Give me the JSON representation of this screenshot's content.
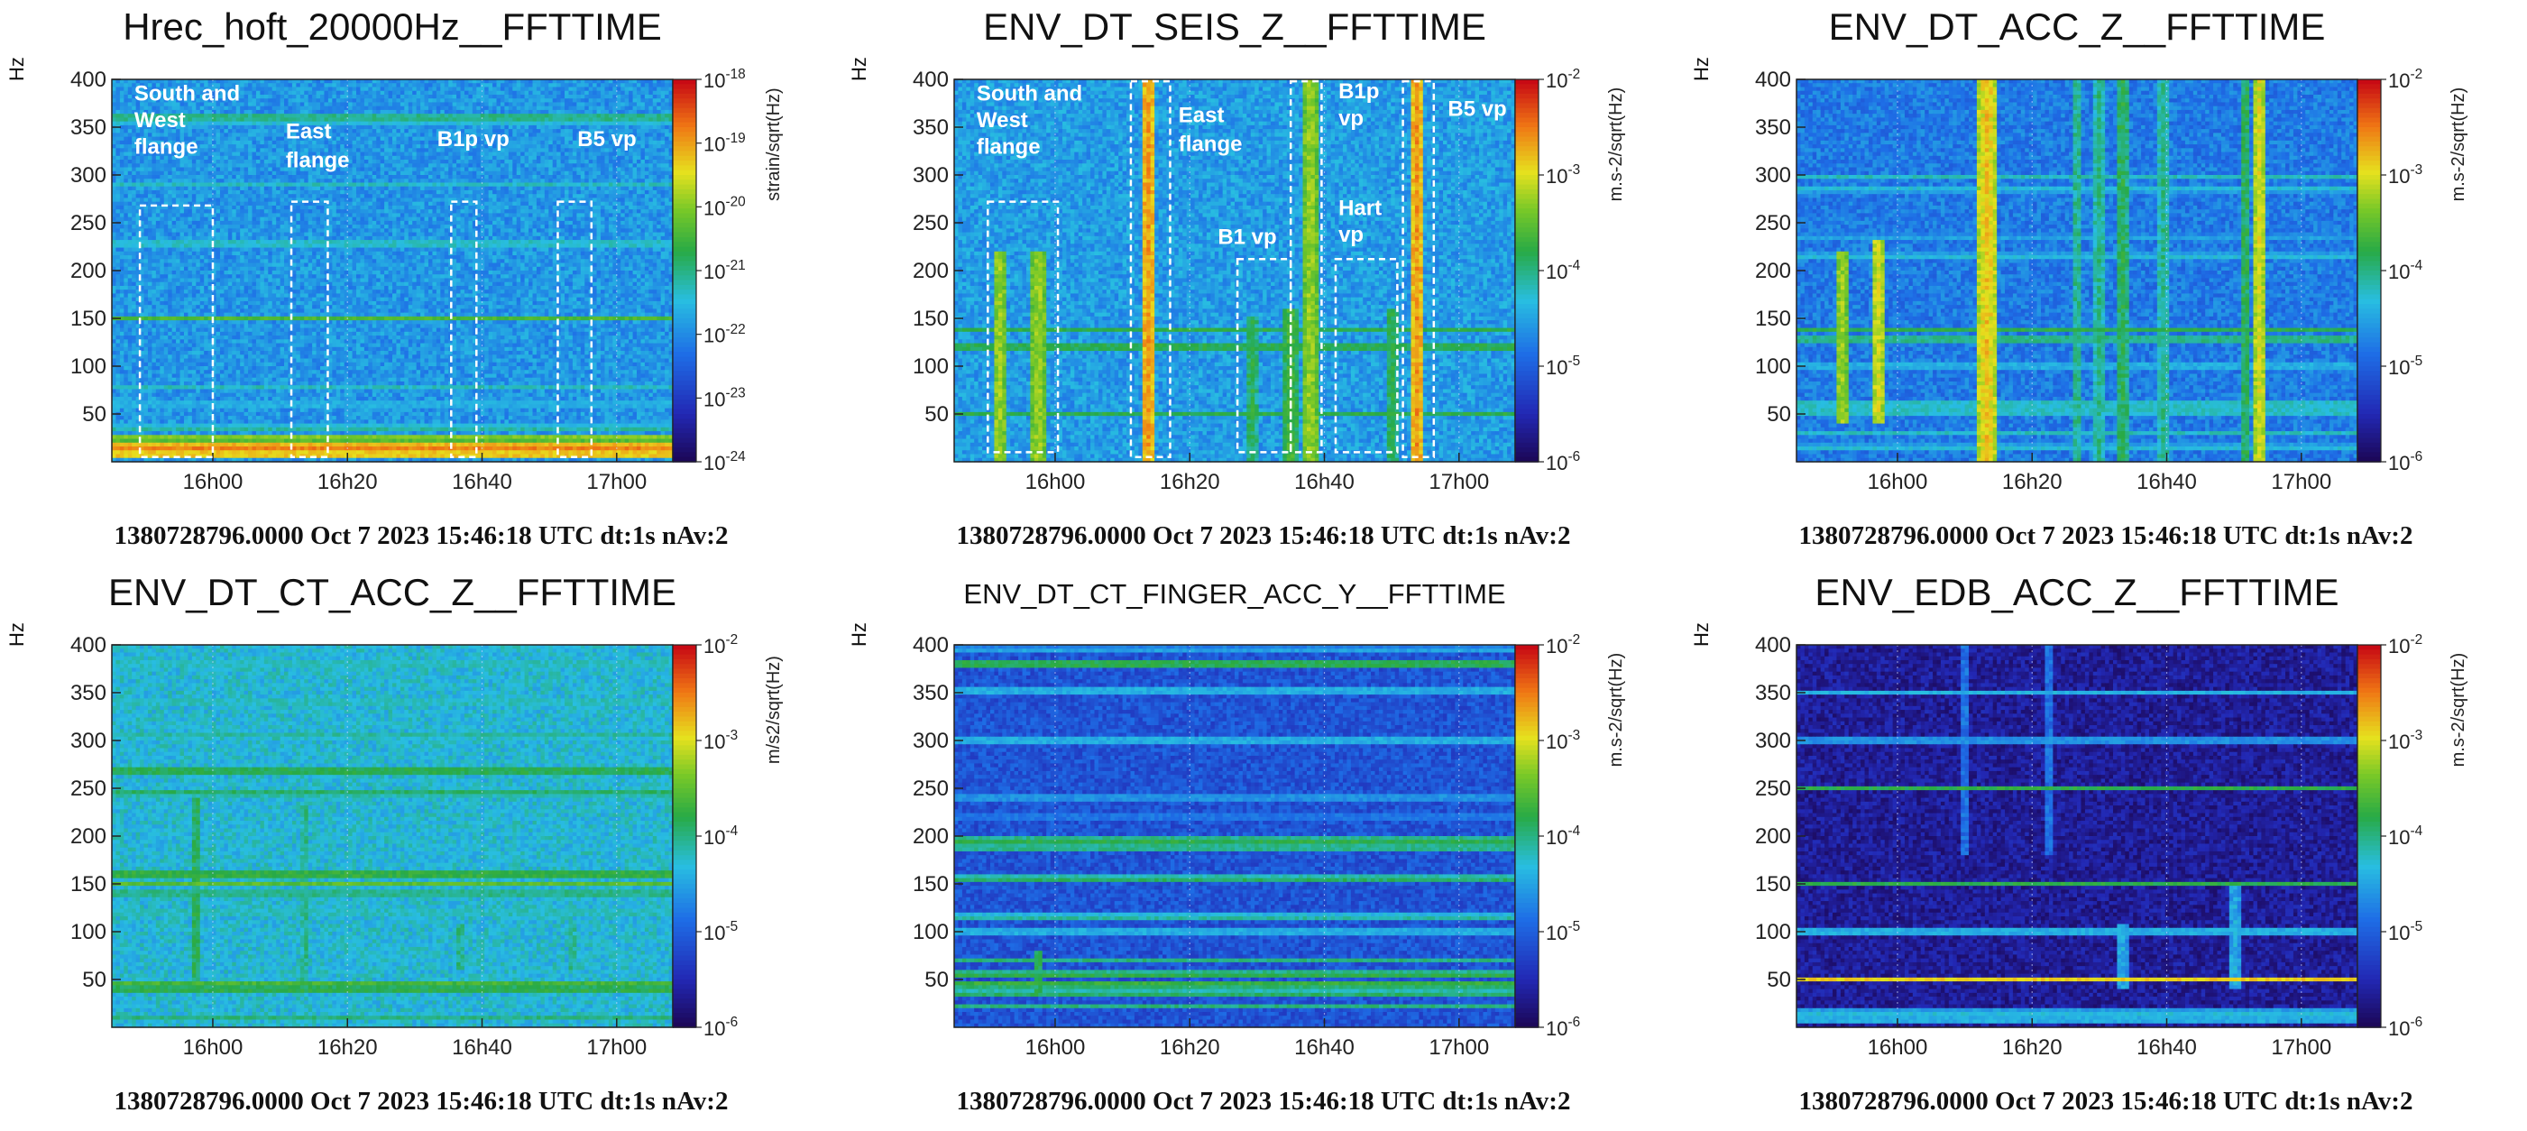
{
  "chart_data": [
    {
      "type": "heatmap",
      "title": "Hrec_hoft_20000Hz__FFTTIME",
      "ylabel": "Hz",
      "yticks": [
        "400",
        "350",
        "300",
        "250",
        "200",
        "150",
        "100",
        "50"
      ],
      "ylim": [
        0,
        400
      ],
      "xticks": [
        "16h00",
        "16h20",
        "16h40",
        "17h00"
      ],
      "colorbar_label": "strain/sqrt(Hz)",
      "colorbar_ticks": [
        "10-18",
        "10-19",
        "10-20",
        "10-21",
        "10-22",
        "10-23",
        "10-24"
      ],
      "colorbar_range_exp": [
        -24,
        -18
      ],
      "footer": "1380728796.0000 Oct 7 2023 15:46:18 UTC dt:1s nAv:2",
      "background_level": 0.35,
      "lines": [
        {
          "hz": 360,
          "v": 0.55
        },
        {
          "hz": 355,
          "v": 0.45
        },
        {
          "hz": 290,
          "v": 0.45
        },
        {
          "hz": 228,
          "v": 0.5
        },
        {
          "hz": 150,
          "v": 0.6
        },
        {
          "hz": 78,
          "v": 0.45
        },
        {
          "hz": 60,
          "v": 0.45
        },
        {
          "hz": 35,
          "v": 0.5
        },
        {
          "hz": 25,
          "v": 0.7
        },
        {
          "hz": 15,
          "v": 0.9
        },
        {
          "hz": 8,
          "v": 0.85
        }
      ],
      "bursts": [],
      "annotations": [
        {
          "text": "South and",
          "hz": 378,
          "t": 0.04
        },
        {
          "text": "West",
          "hz": 350,
          "t": 0.04
        },
        {
          "text": "flange",
          "hz": 322,
          "t": 0.04
        },
        {
          "text": "East",
          "hz": 338,
          "t": 0.31
        },
        {
          "text": "flange",
          "hz": 308,
          "t": 0.31
        },
        {
          "text": "B1p vp",
          "hz": 330,
          "t": 0.58
        },
        {
          "text": "B5 vp",
          "hz": 330,
          "t": 0.83
        }
      ],
      "boxes": [
        {
          "t0": 0.05,
          "t1": 0.18,
          "hz0": 5,
          "hz1": 268
        },
        {
          "t0": 0.32,
          "t1": 0.385,
          "hz0": 5,
          "hz1": 272
        },
        {
          "t0": 0.605,
          "t1": 0.65,
          "hz0": 5,
          "hz1": 272
        },
        {
          "t0": 0.795,
          "t1": 0.855,
          "hz0": 5,
          "hz1": 272
        }
      ]
    },
    {
      "type": "heatmap",
      "title": "ENV_DT_SEIS_Z__FFTTIME",
      "ylabel": "Hz",
      "yticks": [
        "400",
        "350",
        "300",
        "250",
        "200",
        "150",
        "100",
        "50"
      ],
      "ylim": [
        0,
        400
      ],
      "xticks": [
        "16h00",
        "16h20",
        "16h40",
        "17h00"
      ],
      "colorbar_label": "m.s-2/sqrt(Hz)",
      "colorbar_ticks": [
        "10-2",
        "10-3",
        "10-4",
        "10-5",
        "10-6"
      ],
      "colorbar_range_exp": [
        -6,
        -2
      ],
      "footer": "1380728796.0000 Oct 7 2023 15:46:18 UTC dt:1s nAv:2",
      "background_level": 0.36,
      "lines": [
        {
          "hz": 275,
          "v": 0.3
        },
        {
          "hz": 138,
          "v": 0.55
        },
        {
          "hz": 120,
          "v": 0.6
        },
        {
          "hz": 100,
          "v": 0.3
        },
        {
          "hz": 70,
          "v": 0.3
        },
        {
          "hz": 50,
          "v": 0.55
        },
        {
          "hz": 35,
          "v": 0.3
        },
        {
          "hz": 20,
          "v": 0.3
        }
      ],
      "bursts": [
        {
          "t": 0.08,
          "w": 0.012,
          "hz0": 0,
          "hz1": 220,
          "v": 0.7
        },
        {
          "t": 0.15,
          "w": 0.012,
          "hz0": 0,
          "hz1": 220,
          "v": 0.7
        },
        {
          "t": 0.345,
          "w": 0.012,
          "hz0": 0,
          "hz1": 400,
          "v": 0.85
        },
        {
          "t": 0.53,
          "w": 0.01,
          "hz0": 0,
          "hz1": 150,
          "v": 0.55
        },
        {
          "t": 0.6,
          "w": 0.012,
          "hz0": 0,
          "hz1": 160,
          "v": 0.6
        },
        {
          "t": 0.635,
          "w": 0.012,
          "hz0": 0,
          "hz1": 400,
          "v": 0.7
        },
        {
          "t": 0.78,
          "w": 0.01,
          "hz0": 0,
          "hz1": 160,
          "v": 0.55
        },
        {
          "t": 0.825,
          "w": 0.014,
          "hz0": 0,
          "hz1": 400,
          "v": 0.85
        }
      ],
      "annotations": [
        {
          "text": "South and",
          "hz": 378,
          "t": 0.04
        },
        {
          "text": "West",
          "hz": 350,
          "t": 0.04
        },
        {
          "text": "flange",
          "hz": 322,
          "t": 0.04
        },
        {
          "text": "East",
          "hz": 355,
          "t": 0.4
        },
        {
          "text": "flange",
          "hz": 325,
          "t": 0.4
        },
        {
          "text": "B1 vp",
          "hz": 228,
          "t": 0.47
        },
        {
          "text": "B1p",
          "hz": 380,
          "t": 0.685
        },
        {
          "text": "vp",
          "hz": 352,
          "t": 0.685
        },
        {
          "text": "Hart",
          "hz": 258,
          "t": 0.685
        },
        {
          "text": "vp",
          "hz": 230,
          "t": 0.685
        },
        {
          "text": "B5 vp",
          "hz": 362,
          "t": 0.88
        }
      ],
      "boxes": [
        {
          "t0": 0.06,
          "t1": 0.185,
          "hz0": 10,
          "hz1": 272
        },
        {
          "t0": 0.315,
          "t1": 0.385,
          "hz0": 5,
          "hz1": 398
        },
        {
          "t0": 0.505,
          "t1": 0.6,
          "hz0": 10,
          "hz1": 212
        },
        {
          "t0": 0.6,
          "t1": 0.655,
          "hz0": 10,
          "hz1": 398
        },
        {
          "t0": 0.68,
          "t1": 0.79,
          "hz0": 10,
          "hz1": 212
        },
        {
          "t0": 0.8,
          "t1": 0.855,
          "hz0": 5,
          "hz1": 398
        }
      ]
    },
    {
      "type": "heatmap",
      "title": "ENV_DT_ACC_Z__FFTTIME",
      "ylabel": "Hz",
      "yticks": [
        "400",
        "350",
        "300",
        "250",
        "200",
        "150",
        "100",
        "50"
      ],
      "ylim": [
        0,
        400
      ],
      "xticks": [
        "16h00",
        "16h20",
        "16h40",
        "17h00"
      ],
      "colorbar_label": "m.s-2/sqrt(Hz)",
      "colorbar_ticks": [
        "10-2",
        "10-3",
        "10-4",
        "10-5",
        "10-6"
      ],
      "colorbar_range_exp": [
        -6,
        -2
      ],
      "footer": "1380728796.0000 Oct 7 2023 15:46:18 UTC dt:1s nAv:2",
      "background_level": 0.3,
      "lines": [
        {
          "hz": 298,
          "v": 0.45
        },
        {
          "hz": 285,
          "v": 0.45
        },
        {
          "hz": 235,
          "v": 0.4
        },
        {
          "hz": 215,
          "v": 0.45
        },
        {
          "hz": 138,
          "v": 0.55
        },
        {
          "hz": 128,
          "v": 0.55
        },
        {
          "hz": 100,
          "v": 0.45
        },
        {
          "hz": 60,
          "v": 0.5
        },
        {
          "hz": 52,
          "v": 0.5
        },
        {
          "hz": 30,
          "v": 0.45
        },
        {
          "hz": 15,
          "v": 0.45
        }
      ],
      "bursts": [
        {
          "t": 0.08,
          "w": 0.01,
          "hz0": 40,
          "hz1": 220,
          "v": 0.7
        },
        {
          "t": 0.145,
          "w": 0.012,
          "hz0": 40,
          "hz1": 230,
          "v": 0.75
        },
        {
          "t": 0.34,
          "w": 0.016,
          "hz0": 0,
          "hz1": 400,
          "v": 0.8
        },
        {
          "t": 0.5,
          "w": 0.008,
          "hz0": 0,
          "hz1": 400,
          "v": 0.5
        },
        {
          "t": 0.54,
          "w": 0.008,
          "hz0": 0,
          "hz1": 400,
          "v": 0.5
        },
        {
          "t": 0.58,
          "w": 0.01,
          "hz0": 0,
          "hz1": 400,
          "v": 0.55
        },
        {
          "t": 0.655,
          "w": 0.01,
          "hz0": 0,
          "hz1": 400,
          "v": 0.5
        },
        {
          "t": 0.8,
          "w": 0.01,
          "hz0": 0,
          "hz1": 400,
          "v": 0.55
        },
        {
          "t": 0.825,
          "w": 0.014,
          "hz0": 0,
          "hz1": 400,
          "v": 0.75
        }
      ],
      "annotations": [],
      "boxes": []
    },
    {
      "type": "heatmap",
      "title": "ENV_DT_CT_ACC_Z__FFTTIME",
      "ylabel": "Hz",
      "yticks": [
        "400",
        "350",
        "300",
        "250",
        "200",
        "150",
        "100",
        "50"
      ],
      "ylim": [
        0,
        400
      ],
      "xticks": [
        "16h00",
        "16h20",
        "16h40",
        "17h00"
      ],
      "colorbar_label": "m/s2/sqrt(Hz)",
      "colorbar_ticks": [
        "10-2",
        "10-3",
        "10-4",
        "10-5",
        "10-6"
      ],
      "colorbar_range_exp": [
        -6,
        -2
      ],
      "footer": "1380728796.0000 Oct 7 2023 15:46:18 UTC dt:1s nAv:2",
      "background_level": 0.42,
      "lines": [
        {
          "hz": 380,
          "v": 0.5
        },
        {
          "hz": 340,
          "v": 0.5
        },
        {
          "hz": 305,
          "v": 0.5
        },
        {
          "hz": 268,
          "v": 0.6
        },
        {
          "hz": 245,
          "v": 0.55
        },
        {
          "hz": 160,
          "v": 0.62
        },
        {
          "hz": 150,
          "v": 0.62
        },
        {
          "hz": 140,
          "v": 0.55
        },
        {
          "hz": 120,
          "v": 0.5
        },
        {
          "hz": 45,
          "v": 0.62
        },
        {
          "hz": 38,
          "v": 0.55
        },
        {
          "hz": 10,
          "v": 0.5
        }
      ],
      "bursts": [
        {
          "t": 0.15,
          "w": 0.01,
          "hz0": 40,
          "hz1": 240,
          "v": 0.55
        },
        {
          "t": 0.345,
          "w": 0.008,
          "hz0": 40,
          "hz1": 230,
          "v": 0.5
        },
        {
          "t": 0.62,
          "w": 0.008,
          "hz0": 60,
          "hz1": 110,
          "v": 0.5
        },
        {
          "t": 0.82,
          "w": 0.008,
          "hz0": 60,
          "hz1": 110,
          "v": 0.5
        }
      ],
      "annotations": [],
      "boxes": []
    },
    {
      "type": "heatmap",
      "title": "ENV_DT_CT_FINGER_ACC_Y__FFTTIME",
      "ylabel": "Hz",
      "yticks": [
        "400",
        "350",
        "300",
        "250",
        "200",
        "150",
        "100",
        "50"
      ],
      "ylim": [
        0,
        400
      ],
      "xticks": [
        "16h00",
        "16h20",
        "16h40",
        "17h00"
      ],
      "colorbar_label": "m.s-2/sqrt(Hz)",
      "colorbar_ticks": [
        "10-2",
        "10-3",
        "10-4",
        "10-5",
        "10-6"
      ],
      "colorbar_range_exp": [
        -6,
        -2
      ],
      "footer": "1380728796.0000 Oct 7 2023 15:46:18 UTC dt:1s nAv:2",
      "background_level": 0.22,
      "lines": [
        {
          "hz": 395,
          "v": 0.4
        },
        {
          "hz": 380,
          "v": 0.6
        },
        {
          "hz": 352,
          "v": 0.45
        },
        {
          "hz": 300,
          "v": 0.45
        },
        {
          "hz": 240,
          "v": 0.4
        },
        {
          "hz": 220,
          "v": 0.35
        },
        {
          "hz": 195,
          "v": 0.58
        },
        {
          "hz": 188,
          "v": 0.55
        },
        {
          "hz": 155,
          "v": 0.55
        },
        {
          "hz": 115,
          "v": 0.5
        },
        {
          "hz": 100,
          "v": 0.45
        },
        {
          "hz": 70,
          "v": 0.5
        },
        {
          "hz": 55,
          "v": 0.58
        },
        {
          "hz": 45,
          "v": 0.6
        },
        {
          "hz": 35,
          "v": 0.55
        },
        {
          "hz": 22,
          "v": 0.5
        }
      ],
      "bursts": [
        {
          "t": 0.15,
          "w": 0.01,
          "hz0": 30,
          "hz1": 80,
          "v": 0.55
        }
      ],
      "annotations": [],
      "boxes": []
    },
    {
      "type": "heatmap",
      "title": "ENV_EDB_ACC_Z__FFTTIME",
      "ylabel": "Hz",
      "yticks": [
        "400",
        "350",
        "300",
        "250",
        "200",
        "150",
        "100",
        "50"
      ],
      "ylim": [
        0,
        400
      ],
      "xticks": [
        "16h00",
        "16h20",
        "16h40",
        "17h00"
      ],
      "colorbar_label": "m.s-2/sqrt(Hz)",
      "colorbar_ticks": [
        "10-2",
        "10-3",
        "10-4",
        "10-5",
        "10-6"
      ],
      "colorbar_range_exp": [
        -6,
        -2
      ],
      "footer": "1380728796.0000 Oct 7 2023 15:46:18 UTC dt:1s nAv:2",
      "background_level": 0.08,
      "lines": [
        {
          "hz": 350,
          "v": 0.4
        },
        {
          "hz": 300,
          "v": 0.4
        },
        {
          "hz": 250,
          "v": 0.55
        },
        {
          "hz": 150,
          "v": 0.55
        },
        {
          "hz": 100,
          "v": 0.45
        },
        {
          "hz": 50,
          "v": 0.78
        },
        {
          "hz": 15,
          "v": 0.45
        },
        {
          "hz": 8,
          "v": 0.45
        }
      ],
      "bursts": [
        {
          "t": 0.3,
          "w": 0.008,
          "hz0": 180,
          "hz1": 400,
          "v": 0.3
        },
        {
          "t": 0.45,
          "w": 0.008,
          "hz0": 180,
          "hz1": 400,
          "v": 0.3
        },
        {
          "t": 0.58,
          "w": 0.01,
          "hz0": 40,
          "hz1": 110,
          "v": 0.4
        },
        {
          "t": 0.78,
          "w": 0.01,
          "hz0": 40,
          "hz1": 150,
          "v": 0.4
        }
      ],
      "annotations": [],
      "boxes": []
    }
  ]
}
